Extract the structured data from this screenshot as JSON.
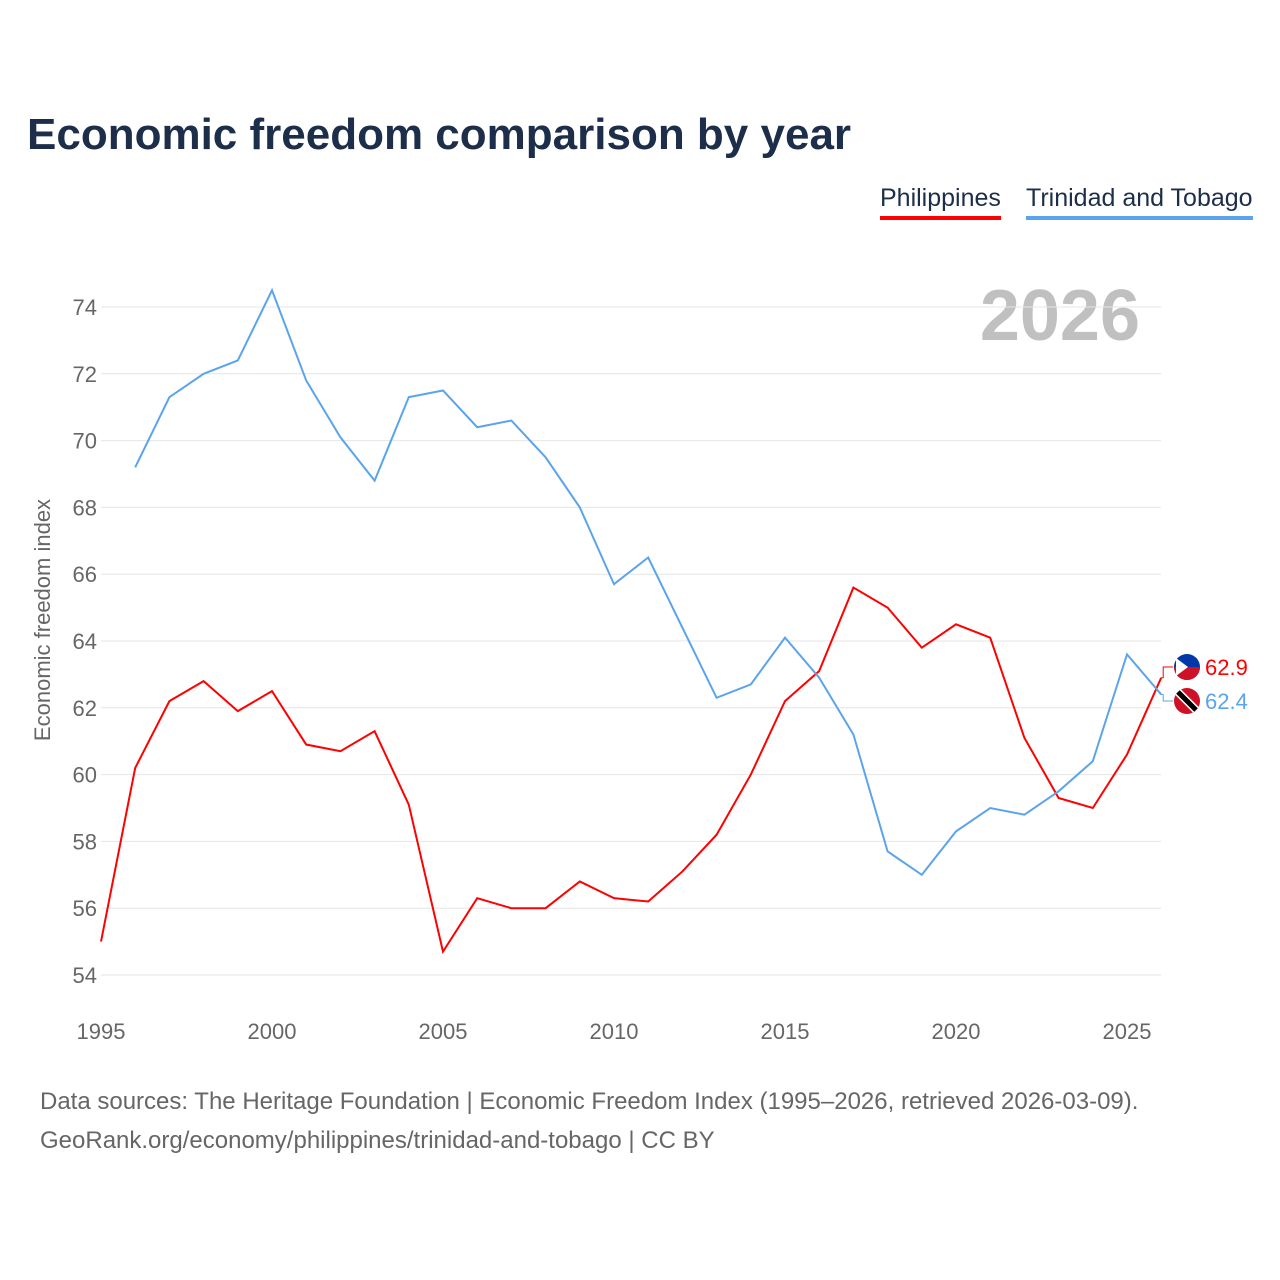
{
  "chart_data": {
    "type": "line",
    "title": "Economic freedom comparison by year",
    "xlabel": "",
    "ylabel": "Economic freedom index",
    "watermark_year": "2026",
    "xlim": [
      1995,
      2026
    ],
    "ylim": [
      54,
      75
    ],
    "xticks": [
      1995,
      2000,
      2005,
      2010,
      2015,
      2020,
      2025
    ],
    "yticks": [
      54,
      56,
      58,
      60,
      62,
      64,
      66,
      68,
      70,
      72,
      74
    ],
    "grid": true,
    "legend_placement": "top-right",
    "series": [
      {
        "name": "Philippines",
        "color": "#ff0000",
        "end_label": "62.9",
        "x": [
          1995,
          1996,
          1997,
          1998,
          1999,
          2000,
          2001,
          2002,
          2003,
          2004,
          2005,
          2006,
          2007,
          2008,
          2009,
          2010,
          2011,
          2012,
          2013,
          2014,
          2015,
          2016,
          2017,
          2018,
          2019,
          2020,
          2021,
          2022,
          2023,
          2024,
          2025,
          2026
        ],
        "values": [
          55.0,
          60.2,
          62.2,
          62.8,
          61.9,
          62.5,
          60.9,
          60.7,
          61.3,
          59.1,
          54.7,
          56.3,
          56.0,
          56.0,
          56.8,
          56.3,
          56.2,
          57.1,
          58.2,
          60.0,
          62.2,
          63.1,
          65.6,
          65.0,
          63.8,
          64.5,
          64.1,
          61.1,
          59.3,
          59.0,
          60.6,
          62.9
        ]
      },
      {
        "name": "Trinidad and Tobago",
        "color": "#5ba4ec",
        "end_label": "62.4",
        "x": [
          1996,
          1997,
          1998,
          1999,
          2000,
          2001,
          2002,
          2003,
          2004,
          2005,
          2006,
          2007,
          2008,
          2009,
          2010,
          2011,
          2012,
          2013,
          2014,
          2015,
          2016,
          2017,
          2018,
          2019,
          2020,
          2021,
          2022,
          2023,
          2024,
          2025,
          2026
        ],
        "values": [
          69.2,
          71.3,
          72.0,
          72.4,
          74.5,
          71.8,
          70.1,
          68.8,
          71.3,
          71.5,
          70.4,
          70.6,
          69.5,
          68.0,
          65.7,
          66.5,
          64.4,
          62.3,
          62.7,
          64.1,
          62.9,
          61.2,
          57.7,
          57.0,
          58.3,
          59.0,
          58.8,
          59.5,
          60.4,
          63.6,
          62.4
        ]
      }
    ]
  },
  "footer": {
    "line1": "Data sources: The Heritage Foundation | Economic Freedom Index (1995–2026, retrieved 2026-03-09).",
    "line2": "GeoRank.org/economy/philippines/trinidad-and-tobago | CC BY"
  }
}
